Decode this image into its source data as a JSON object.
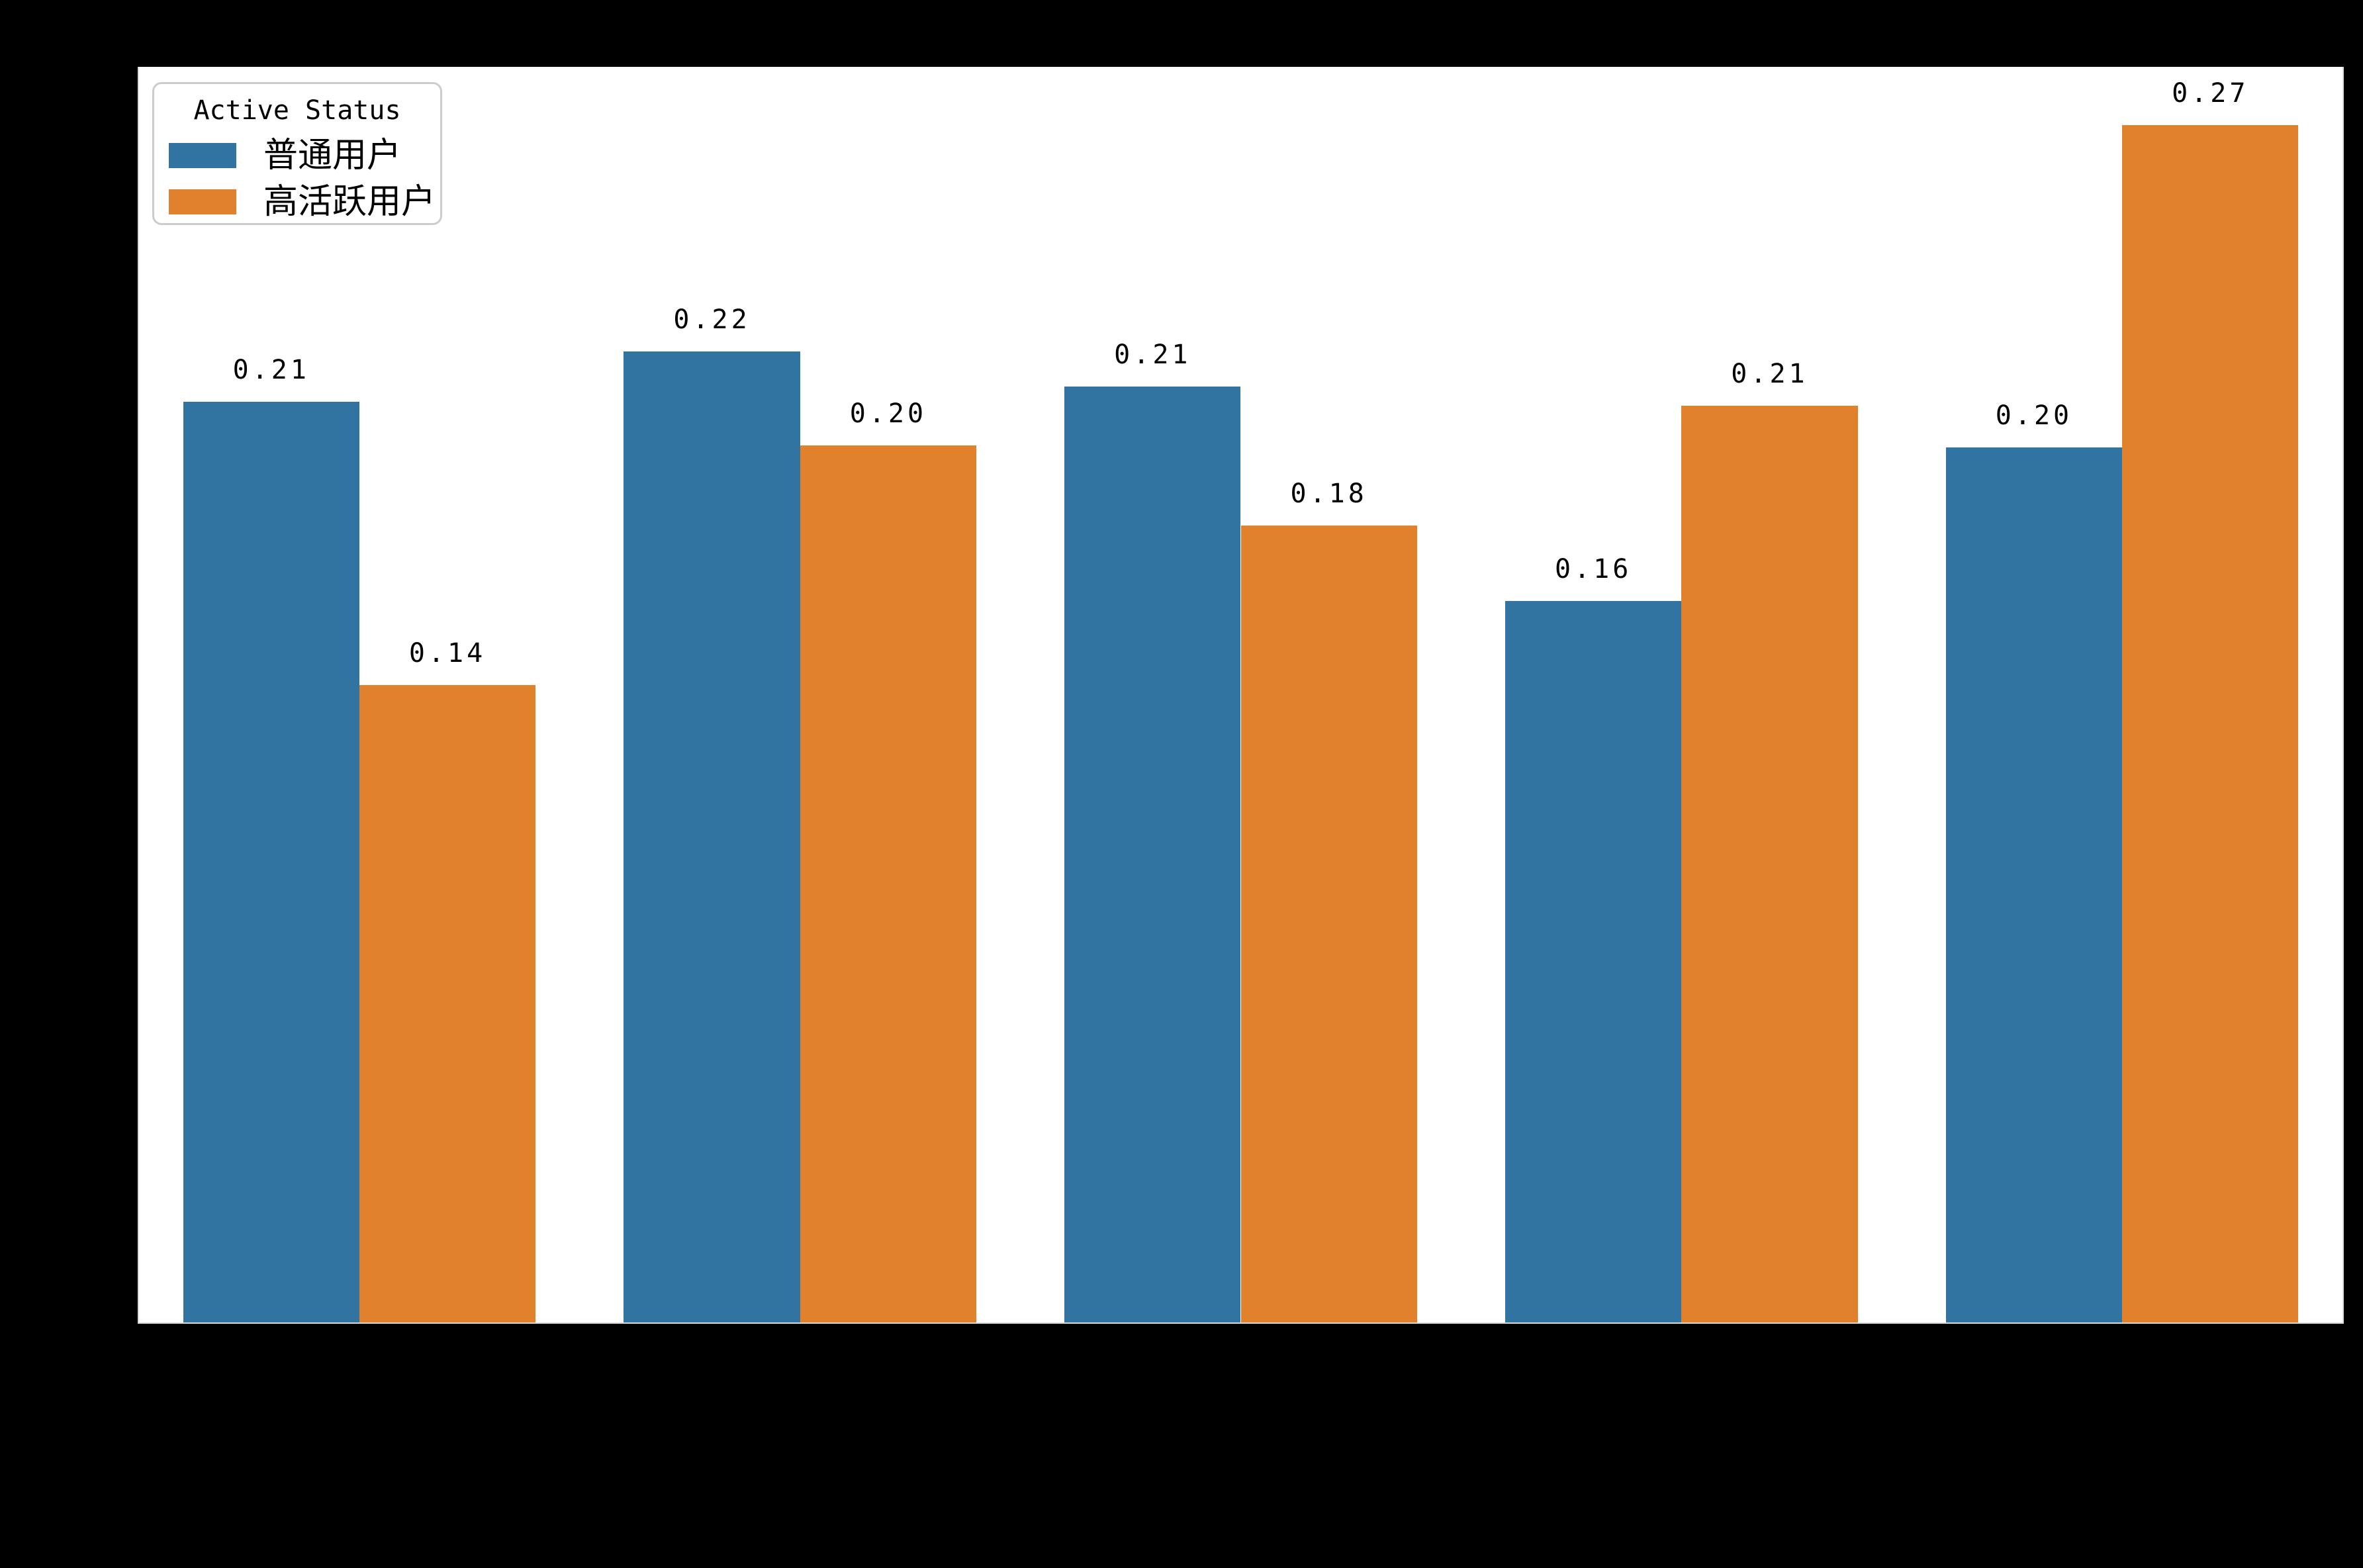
{
  "chart_data": {
    "type": "bar",
    "categories": [
      "",
      "",
      "",
      "",
      ""
    ],
    "series": [
      {
        "name": "普通用户",
        "color": "#3274a1",
        "values": [
          0.2079,
          0.2193,
          0.2113,
          0.1629,
          0.1976
        ],
        "labels": [
          "0.21",
          "0.22",
          "0.21",
          "0.16",
          "0.20"
        ]
      },
      {
        "name": "高活跃用户",
        "color": "#e1812c",
        "values": [
          0.1439,
          0.198,
          0.18,
          0.207,
          0.2704
        ],
        "labels": [
          "0.14",
          "0.20",
          "0.18",
          "0.21",
          "0.27"
        ]
      }
    ],
    "title": "",
    "xlabel": "",
    "ylabel": "",
    "ylim": [
      0,
      0.2835
    ],
    "grid": false,
    "bar_group_width_fraction": 0.8,
    "legend": {
      "title": "Active Status",
      "position": "upper left"
    },
    "colors": {
      "figure_background": "#000000",
      "axes_background": "#ffffff",
      "label_text": "#000000",
      "legend_border": "#cccccc"
    }
  }
}
